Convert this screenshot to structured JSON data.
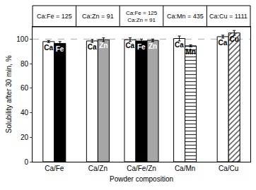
{
  "chart_data": {
    "type": "bar",
    "y_label": "Solubility after 30 min, %",
    "x_label": "Powder composition",
    "categories": [
      "Ca/Fe",
      "Ca/Zn",
      "Ca/Fe/Zn",
      "Ca/Mn",
      "Ca/Cu"
    ],
    "annotations": [
      [
        "Ca:Fe = 125"
      ],
      [
        "Ca:Zn = 91"
      ],
      [
        "Ca:Fe = 125",
        "Ca:Zn = 91"
      ],
      [
        "Ca:Mn = 435"
      ],
      [
        "Ca:Cu = 1111"
      ]
    ],
    "series": [
      {
        "name": "Ca",
        "color": "#ffffff",
        "marker": "solid",
        "values": [
          98,
          98.5,
          99.5,
          100.5,
          102
        ],
        "errors": [
          0.8,
          1.2,
          1.5,
          2,
          1.2
        ]
      },
      {
        "name": "Fe",
        "color": "#000000",
        "marker": "solid",
        "values": [
          96.5,
          null,
          98.5,
          null,
          null
        ],
        "errors": [
          1.5,
          null,
          1.5,
          null,
          null
        ]
      },
      {
        "name": "Zn",
        "color": "#a6a6a6",
        "marker": "solid",
        "values": [
          null,
          99.5,
          99,
          null,
          null
        ],
        "errors": [
          null,
          1.5,
          1,
          null,
          null
        ]
      },
      {
        "name": "Mn",
        "color": "#ffffff",
        "marker": "horizontal_hatch",
        "values": [
          null,
          null,
          null,
          94.5,
          null
        ],
        "errors": [
          null,
          null,
          null,
          0.8,
          null
        ]
      },
      {
        "name": "Cu",
        "color": "#ffffff",
        "marker": "diagonal_hatch",
        "values": [
          null,
          null,
          null,
          null,
          105
        ],
        "errors": [
          null,
          null,
          null,
          null,
          2
        ]
      }
    ],
    "reference_value": 100,
    "ylim": [
      0,
      110
    ],
    "yticks": [
      0,
      20,
      40,
      60,
      80,
      100
    ],
    "grid": false
  }
}
